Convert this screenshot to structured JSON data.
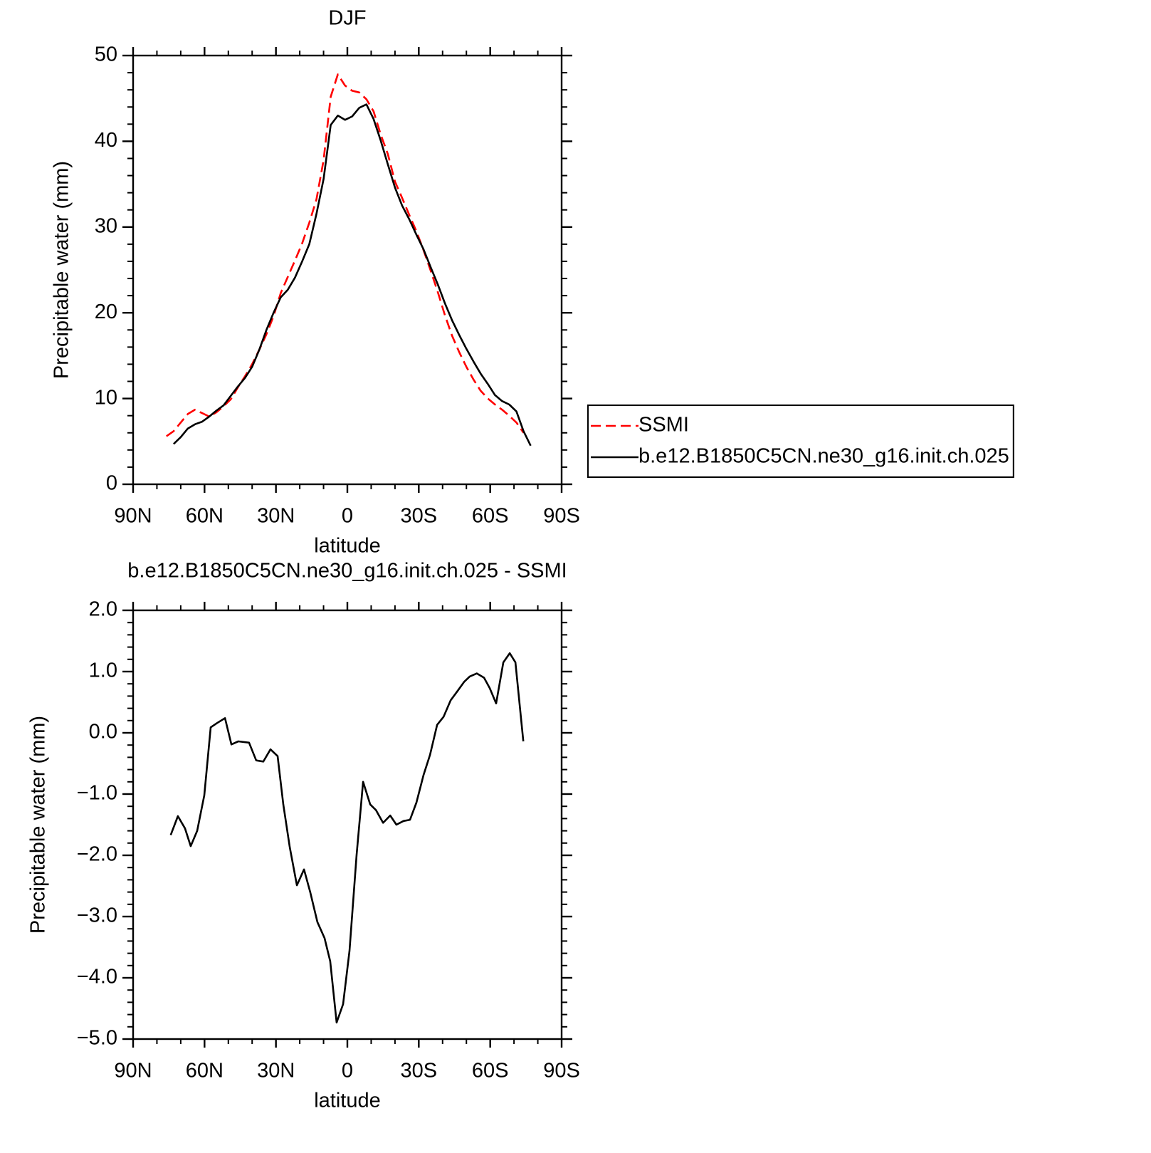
{
  "chart_data": [
    {
      "type": "line",
      "title": "DJF",
      "xlabel": "latitude",
      "ylabel": "Precipitable water (mm)",
      "x": [
        76,
        73,
        70,
        67,
        64,
        61,
        58,
        55,
        52,
        49,
        46,
        43,
        40,
        37,
        34,
        31,
        28,
        25,
        22,
        19,
        16,
        13,
        10,
        7,
        4,
        1,
        -2,
        -5,
        -8,
        -11,
        -14,
        -17,
        -20,
        -23,
        -26,
        -29,
        -32,
        -35,
        -38,
        -41,
        -44,
        -47,
        -50,
        -53,
        -56,
        -59,
        -62,
        -65,
        -68,
        -71,
        -74,
        -77
      ],
      "series": [
        {
          "name": "SSMI",
          "color": "#ff0000",
          "dash": true,
          "values": [
            5.6,
            6.2,
            7.2,
            8.2,
            8.7,
            8.3,
            7.9,
            8.4,
            9.1,
            9.9,
            11.3,
            12.6,
            14,
            15.7,
            17.5,
            19.6,
            22.3,
            24.2,
            26.1,
            28.1,
            30.5,
            33.2,
            37.8,
            45.2,
            47.8,
            46.5,
            45.9,
            45.7,
            44.9,
            43.5,
            40.8,
            38.5,
            35.3,
            33.4,
            31.4,
            29.5,
            27.3,
            24.9,
            22.4,
            19.7,
            17.3,
            15.4,
            13.7,
            12.2,
            10.9,
            10,
            9.3,
            8.7,
            8,
            7.2,
            6,
            null
          ]
        },
        {
          "name": "b.e12.B1850C5CN.ne30_g16.init.ch.025",
          "color": "#000000",
          "dash": false,
          "values": [
            null,
            4.7,
            5.5,
            6.5,
            7.0,
            7.3,
            7.9,
            8.6,
            9.2,
            10.3,
            11.4,
            12.4,
            13.7,
            15.7,
            18,
            20,
            21.8,
            22.7,
            24.1,
            26,
            28,
            31.5,
            35.6,
            41.9,
            43,
            42.5,
            42.9,
            43.9,
            44.3,
            42.6,
            40.1,
            37.3,
            34.6,
            32.5,
            30.9,
            29.1,
            27.4,
            25.3,
            23.3,
            21.1,
            19.1,
            17.4,
            15.8,
            14.3,
            12.9,
            11.7,
            10.4,
            9.7,
            9.3,
            8.5,
            6.2,
            4.5
          ]
        }
      ],
      "xlim": [
        90,
        -90
      ],
      "xticks": [
        {
          "value": 90,
          "label": "90N"
        },
        {
          "value": 60,
          "label": "60N"
        },
        {
          "value": 30,
          "label": "30N"
        },
        0,
        {
          "value": -30,
          "label": "30S"
        },
        {
          "value": -60,
          "label": "60S"
        },
        {
          "value": -90,
          "label": "90S"
        }
      ],
      "ylim": [
        0,
        50
      ],
      "yticks": [
        0,
        10,
        20,
        30,
        40,
        50
      ],
      "legend": "right",
      "grid": false
    },
    {
      "type": "line",
      "title": "b.e12.B1850C5CN.ne30_g16.init.ch.025 - SSMI",
      "xlabel": "latitude",
      "ylabel": "Precipitable water (mm)",
      "x": [
        74.2,
        71.2,
        68.2,
        65.8,
        63.1,
        60.1,
        57.4,
        54.7,
        51.4,
        48.7,
        45.8,
        41.3,
        38.3,
        35.3,
        32.3,
        29.3,
        26.9,
        24.2,
        21.2,
        18.2,
        15.6,
        12.6,
        9.6,
        7.2,
        4.5,
        1.8,
        -0.9,
        -3.9,
        -6.6,
        -9.6,
        -12,
        -15,
        -18,
        -20.6,
        -23.6,
        -26.3,
        -29,
        -32,
        -34.7,
        -37.7,
        -40.4,
        -43.4,
        -46.4,
        -49,
        -51.4,
        -54.4,
        -57.4,
        -59.8,
        -62.5,
        -65.5,
        -68.2,
        -70.6,
        -73.9
      ],
      "values": [
        -1.67,
        -1.36,
        -1.56,
        -1.85,
        -1.6,
        -1.02,
        0.09,
        0.16,
        0.24,
        -0.19,
        -0.14,
        -0.16,
        -0.45,
        -0.47,
        -0.27,
        -0.38,
        -1.17,
        -1.87,
        -2.49,
        -2.23,
        -2.6,
        -3.09,
        -3.35,
        -3.73,
        -4.73,
        -4.43,
        -3.56,
        -1.99,
        -0.8,
        -1.17,
        -1.26,
        -1.47,
        -1.35,
        -1.5,
        -1.44,
        -1.42,
        -1.14,
        -0.69,
        -0.36,
        0.13,
        0.26,
        0.53,
        0.69,
        0.83,
        0.92,
        0.97,
        0.9,
        0.73,
        0.48,
        1.15,
        1.3,
        1.15,
        -0.14
      ],
      "color": "#000000",
      "xlim": [
        90,
        -90
      ],
      "xticks": [
        {
          "value": 90,
          "label": "90N"
        },
        {
          "value": 60,
          "label": "60N"
        },
        {
          "value": 30,
          "label": "30N"
        },
        0,
        {
          "value": -30,
          "label": "30S"
        },
        {
          "value": -60,
          "label": "60S"
        },
        {
          "value": -90,
          "label": "90S"
        }
      ],
      "ylim": [
        -5,
        2
      ],
      "yticks": [
        {
          "value": -5,
          "label": "−5.0"
        },
        {
          "value": -4,
          "label": "−4.0"
        },
        {
          "value": -3,
          "label": "−3.0"
        },
        {
          "value": -2,
          "label": "−2.0"
        },
        {
          "value": -1,
          "label": "−1.0"
        },
        {
          "value": 0,
          "label": "0.0"
        },
        {
          "value": 1,
          "label": "1.0"
        },
        {
          "value": 2,
          "label": "2.0"
        }
      ],
      "grid": false
    }
  ]
}
